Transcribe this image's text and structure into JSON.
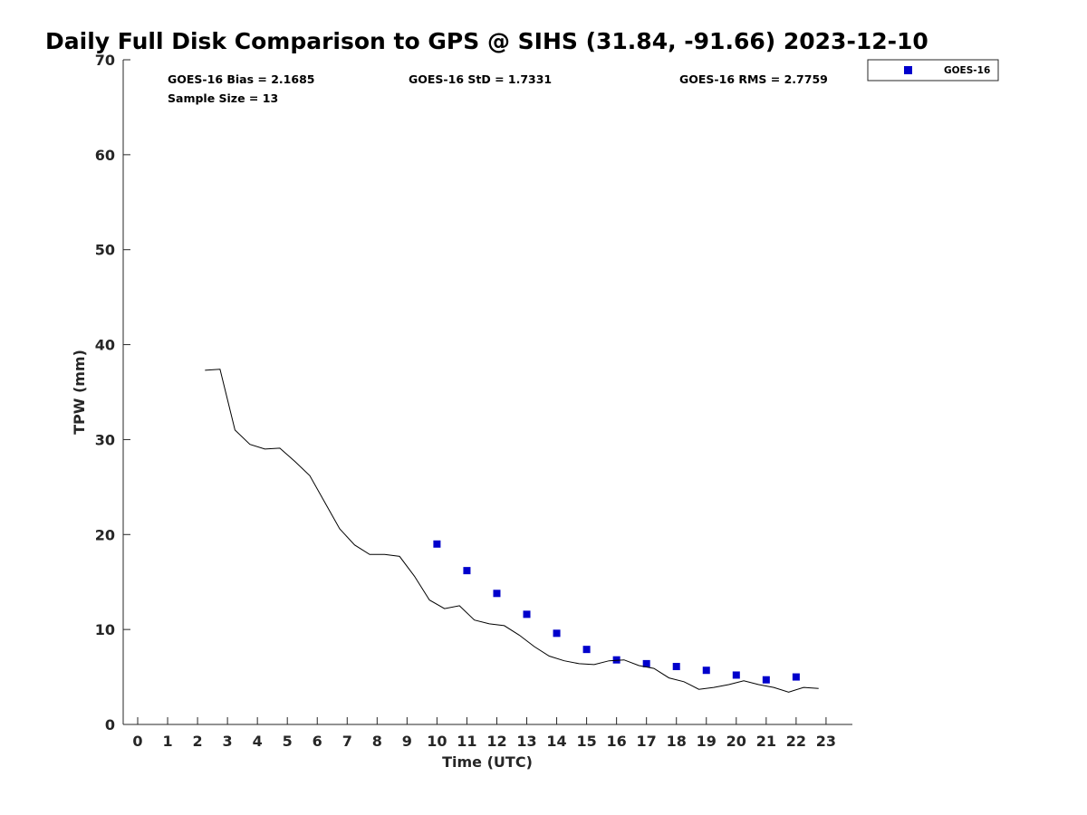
{
  "chart_data": {
    "type": "scatter",
    "title": "Daily Full Disk Comparison to GPS @ SIHS (31.84, -91.66) 2023-12-10",
    "xlabel": "Time (UTC)",
    "ylabel": "TPW (mm)",
    "xlim": [
      -0.5,
      23.8
    ],
    "ylim": [
      0,
      70
    ],
    "x_ticks": [
      0,
      1,
      2,
      3,
      4,
      5,
      6,
      7,
      8,
      9,
      10,
      11,
      12,
      13,
      14,
      15,
      16,
      17,
      18,
      19,
      20,
      21,
      22,
      23
    ],
    "y_ticks": [
      0,
      10,
      20,
      30,
      40,
      50,
      60,
      70
    ],
    "grid": false,
    "legend_position": "top-right",
    "stats": {
      "bias": "GOES-16 Bias = 2.1685",
      "std": "GOES-16 StD = 1.7331",
      "rms": "GOES-16 RMS = 2.7759",
      "sample_size": "Sample Size = 13"
    },
    "series": [
      {
        "name": "GOES-16",
        "kind": "scatter",
        "marker": "square",
        "color": "#0000cc",
        "x": [
          10.0,
          11.0,
          12.0,
          13.0,
          14.0,
          15.0,
          16.0,
          17.0,
          18.0,
          19.0,
          20.0,
          21.0,
          22.0
        ],
        "y": [
          19.0,
          16.2,
          13.8,
          11.6,
          9.6,
          7.9,
          6.8,
          6.4,
          6.1,
          5.7,
          5.2,
          4.7,
          5.0
        ]
      },
      {
        "kind": "line",
        "color": "#000000",
        "x": [
          2.25,
          2.75,
          3.25,
          3.75,
          4.25,
          4.75,
          5.25,
          5.75,
          6.25,
          6.75,
          7.25,
          7.75,
          8.25,
          8.75,
          9.25,
          9.75,
          10.25,
          10.75,
          11.25,
          11.75,
          12.25,
          12.75,
          13.25,
          13.75,
          14.25,
          14.75,
          15.25,
          15.75,
          16.25,
          16.75,
          17.25,
          17.75,
          18.25,
          18.75,
          19.25,
          19.75,
          20.25,
          20.75,
          21.25,
          21.75,
          22.25,
          22.75
        ],
        "y": [
          37.3,
          37.4,
          31.0,
          29.5,
          29.0,
          29.1,
          27.7,
          26.2,
          23.4,
          20.6,
          18.9,
          17.9,
          17.9,
          17.7,
          15.6,
          13.1,
          12.2,
          12.5,
          11.0,
          10.6,
          10.4,
          9.4,
          8.2,
          7.2,
          6.7,
          6.4,
          6.3,
          6.7,
          6.8,
          6.2,
          5.9,
          4.9,
          4.5,
          3.7,
          3.9,
          4.2,
          4.6,
          4.2,
          3.9,
          3.4,
          3.9,
          3.8
        ]
      }
    ]
  }
}
